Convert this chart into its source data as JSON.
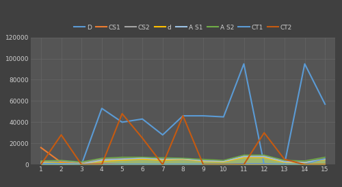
{
  "x": [
    1,
    2,
    3,
    4,
    5,
    6,
    7,
    8,
    9,
    10,
    11,
    12,
    13,
    14,
    15
  ],
  "series": {
    "D": [
      0,
      0,
      0,
      53000,
      40000,
      43000,
      28000,
      46000,
      46000,
      45000,
      95000,
      0,
      0,
      95000,
      57000
    ],
    "CS1": [
      16000,
      2000,
      0,
      1000,
      0,
      0,
      0,
      0,
      0,
      0,
      0,
      0,
      0,
      0,
      0
    ],
    "CS2": [
      3000,
      3500,
      1500,
      5000,
      5500,
      6000,
      5000,
      4500,
      3500,
      3000,
      8000,
      8000,
      3500,
      2000,
      5500
    ],
    "d": [
      2000,
      1500,
      1000,
      3000,
      4000,
      5000,
      4000,
      5000,
      3000,
      2500,
      6500,
      6500,
      2000,
      1500,
      4500
    ],
    "A S1": [
      1500,
      1000,
      500,
      4000,
      5000,
      6000,
      5000,
      5500,
      3500,
      3000,
      7500,
      7500,
      2500,
      2000,
      5000
    ],
    "A S2": [
      3500,
      4000,
      2500,
      6000,
      7000,
      7000,
      6500,
      6000,
      5000,
      4000,
      9000,
      9000,
      4000,
      3500,
      7000
    ],
    "CT1": [
      1000,
      1000,
      500,
      500,
      500,
      500,
      500,
      500,
      500,
      500,
      1000,
      1000,
      500,
      500,
      5500
    ],
    "CT2": [
      0,
      28000,
      0,
      0,
      48000,
      25000,
      0,
      46000,
      0,
      0,
      0,
      30000,
      5000,
      0,
      0
    ]
  },
  "line_colors": {
    "D": "#5b9bd5",
    "CS1": "#ed7d31",
    "CS2": "#a5a5a5",
    "d": "#ffc000",
    "A S1": "#9dc3e6",
    "A S2": "#70ad47",
    "CT1": "#5b9bd5",
    "CT2": "#c55a11"
  },
  "fill_series": [
    "CS2",
    "d",
    "A S1",
    "A S2"
  ],
  "fill_colors": {
    "CS2": "#a5a5a5",
    "d": "#ffc000",
    "A S1": "#9dc3e6",
    "A S2": "#92d050"
  },
  "background_color": "#404040",
  "plot_bg_color": "#555555",
  "grid_color": "#666666",
  "text_color": "#d0d0d0",
  "ylim": [
    0,
    120000
  ],
  "yticks": [
    0,
    20000,
    40000,
    60000,
    80000,
    100000,
    120000
  ],
  "xticks": [
    1,
    2,
    3,
    4,
    5,
    6,
    7,
    8,
    9,
    10,
    11,
    12,
    13,
    14,
    15
  ],
  "legend_order": [
    "D",
    "CS1",
    "CS2",
    "d",
    "A S1",
    "A S2",
    "CT1",
    "CT2"
  ],
  "legend_colors": {
    "D": "#5b9bd5",
    "CS1": "#ed7d31",
    "CS2": "#a5a5a5",
    "d": "#ffc000",
    "A S1": "#9dc3e6",
    "A S2": "#70ad47",
    "CT1": "#5b9bd5",
    "CT2": "#c55a11"
  }
}
